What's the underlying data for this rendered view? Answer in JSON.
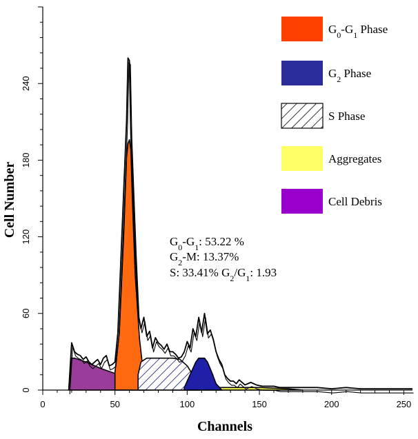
{
  "chart_data": {
    "type": "area",
    "title": "",
    "xlabel": "Channels",
    "ylabel": "Cell Number",
    "xlim": [
      0,
      256
    ],
    "ylim": [
      0,
      300
    ],
    "x_ticks": [
      0,
      50,
      100,
      150,
      200,
      250
    ],
    "y_ticks": [
      0,
      60,
      120,
      180,
      240
    ],
    "legend": [
      {
        "key": "g0g1",
        "pre": "G",
        "sub1": "0",
        "mid": "-G",
        "sub2": "1",
        "post": " Phase",
        "color": "#ff4000",
        "pattern": false
      },
      {
        "key": "g2",
        "pre": "G",
        "sub1": "2",
        "mid": " Phase",
        "sub2": "",
        "post": "",
        "color": "#2b2b99",
        "pattern": false
      },
      {
        "key": "s",
        "pre": "S Phase",
        "sub1": "",
        "mid": "",
        "sub2": "",
        "post": "",
        "color": "#ffffff",
        "pattern": true
      },
      {
        "key": "aggregates",
        "pre": "Aggregates",
        "sub1": "",
        "mid": "",
        "sub2": "",
        "post": "",
        "color": "#ffff66",
        "pattern": false
      },
      {
        "key": "debris",
        "pre": "Cell Debris",
        "sub1": "",
        "mid": "",
        "sub2": "",
        "post": "",
        "color": "#9900cc",
        "pattern": false
      }
    ],
    "stats": [
      {
        "pre": "G",
        "sub1": "0",
        "mid": "-G",
        "sub2": "1",
        "post": ": 53.22 %",
        "sub3": "",
        "tail": ""
      },
      {
        "pre": "G",
        "sub1": "2",
        "mid": "-M: 13.37%",
        "sub2": "",
        "post": "",
        "sub3": "",
        "tail": ""
      },
      {
        "pre": "S: 33.41% G",
        "sub1": "2",
        "mid": "/G",
        "sub2": "1",
        "post": ": 1.93",
        "sub3": "",
        "tail": ""
      }
    ],
    "series": [
      {
        "name": "Cell Debris",
        "color": "#9a3c9a",
        "x": [
          18,
          20,
          22,
          30,
          40,
          50,
          55,
          60,
          65,
          70,
          75
        ],
        "y": [
          0,
          25,
          25,
          22,
          17,
          13,
          12,
          8,
          6,
          3,
          0
        ]
      },
      {
        "name": "G0-G1 Phase",
        "color": "#ff6a10",
        "x": [
          50,
          53,
          56,
          58,
          59,
          60,
          61,
          62,
          64,
          67,
          70,
          72
        ],
        "y": [
          14,
          45,
          120,
          182,
          193,
          196,
          188,
          150,
          90,
          40,
          10,
          0
        ]
      },
      {
        "name": "S Phase",
        "color": "#ffffff",
        "x": [
          66,
          68,
          72,
          78,
          85,
          90,
          95,
          100,
          105,
          110
        ],
        "y": [
          12,
          22,
          25,
          25,
          25,
          25,
          24,
          19,
          10,
          2
        ]
      },
      {
        "name": "G2 Phase",
        "color": "#1f1fa8",
        "x": [
          98,
          102,
          106,
          108,
          110,
          112,
          114,
          117,
          120,
          124
        ],
        "y": [
          2,
          12,
          22,
          25,
          25,
          25,
          22,
          14,
          5,
          0
        ]
      },
      {
        "name": "Aggregates",
        "color": "#ffff55",
        "x": [
          90,
          110,
          130,
          150,
          170,
          180
        ],
        "y": [
          0,
          2,
          2,
          2,
          1,
          0
        ]
      }
    ],
    "histogram": {
      "x": [
        18,
        20,
        22,
        24,
        26,
        28,
        30,
        32,
        34,
        36,
        38,
        40,
        42,
        44,
        46,
        48,
        50,
        52,
        54,
        56,
        58,
        59,
        60,
        61,
        62,
        64,
        66,
        68,
        70,
        72,
        74,
        76,
        78,
        80,
        82,
        84,
        86,
        88,
        90,
        92,
        94,
        96,
        98,
        100,
        102,
        104,
        106,
        108,
        110,
        112,
        114,
        116,
        118,
        120,
        122,
        124,
        126,
        128,
        130,
        132,
        134,
        136,
        140,
        144,
        148,
        152,
        156,
        160,
        164,
        168,
        172,
        176,
        180,
        190,
        200,
        210,
        220,
        230,
        240,
        250,
        256
      ],
      "y": [
        0,
        37,
        30,
        28,
        27,
        24,
        26,
        22,
        20,
        22,
        24,
        20,
        25,
        27,
        19,
        20,
        22,
        45,
        100,
        155,
        210,
        260,
        258,
        200,
        170,
        110,
        60,
        48,
        57,
        42,
        46,
        33,
        41,
        37,
        35,
        32,
        36,
        30,
        30,
        28,
        25,
        26,
        30,
        38,
        33,
        48,
        42,
        57,
        45,
        60,
        44,
        47,
        40,
        30,
        24,
        20,
        12,
        9,
        7,
        7,
        5,
        8,
        4,
        6,
        4,
        3,
        3,
        3,
        2,
        2,
        2,
        2,
        2,
        2,
        1,
        2,
        1,
        1,
        1,
        1,
        1
      ]
    }
  }
}
